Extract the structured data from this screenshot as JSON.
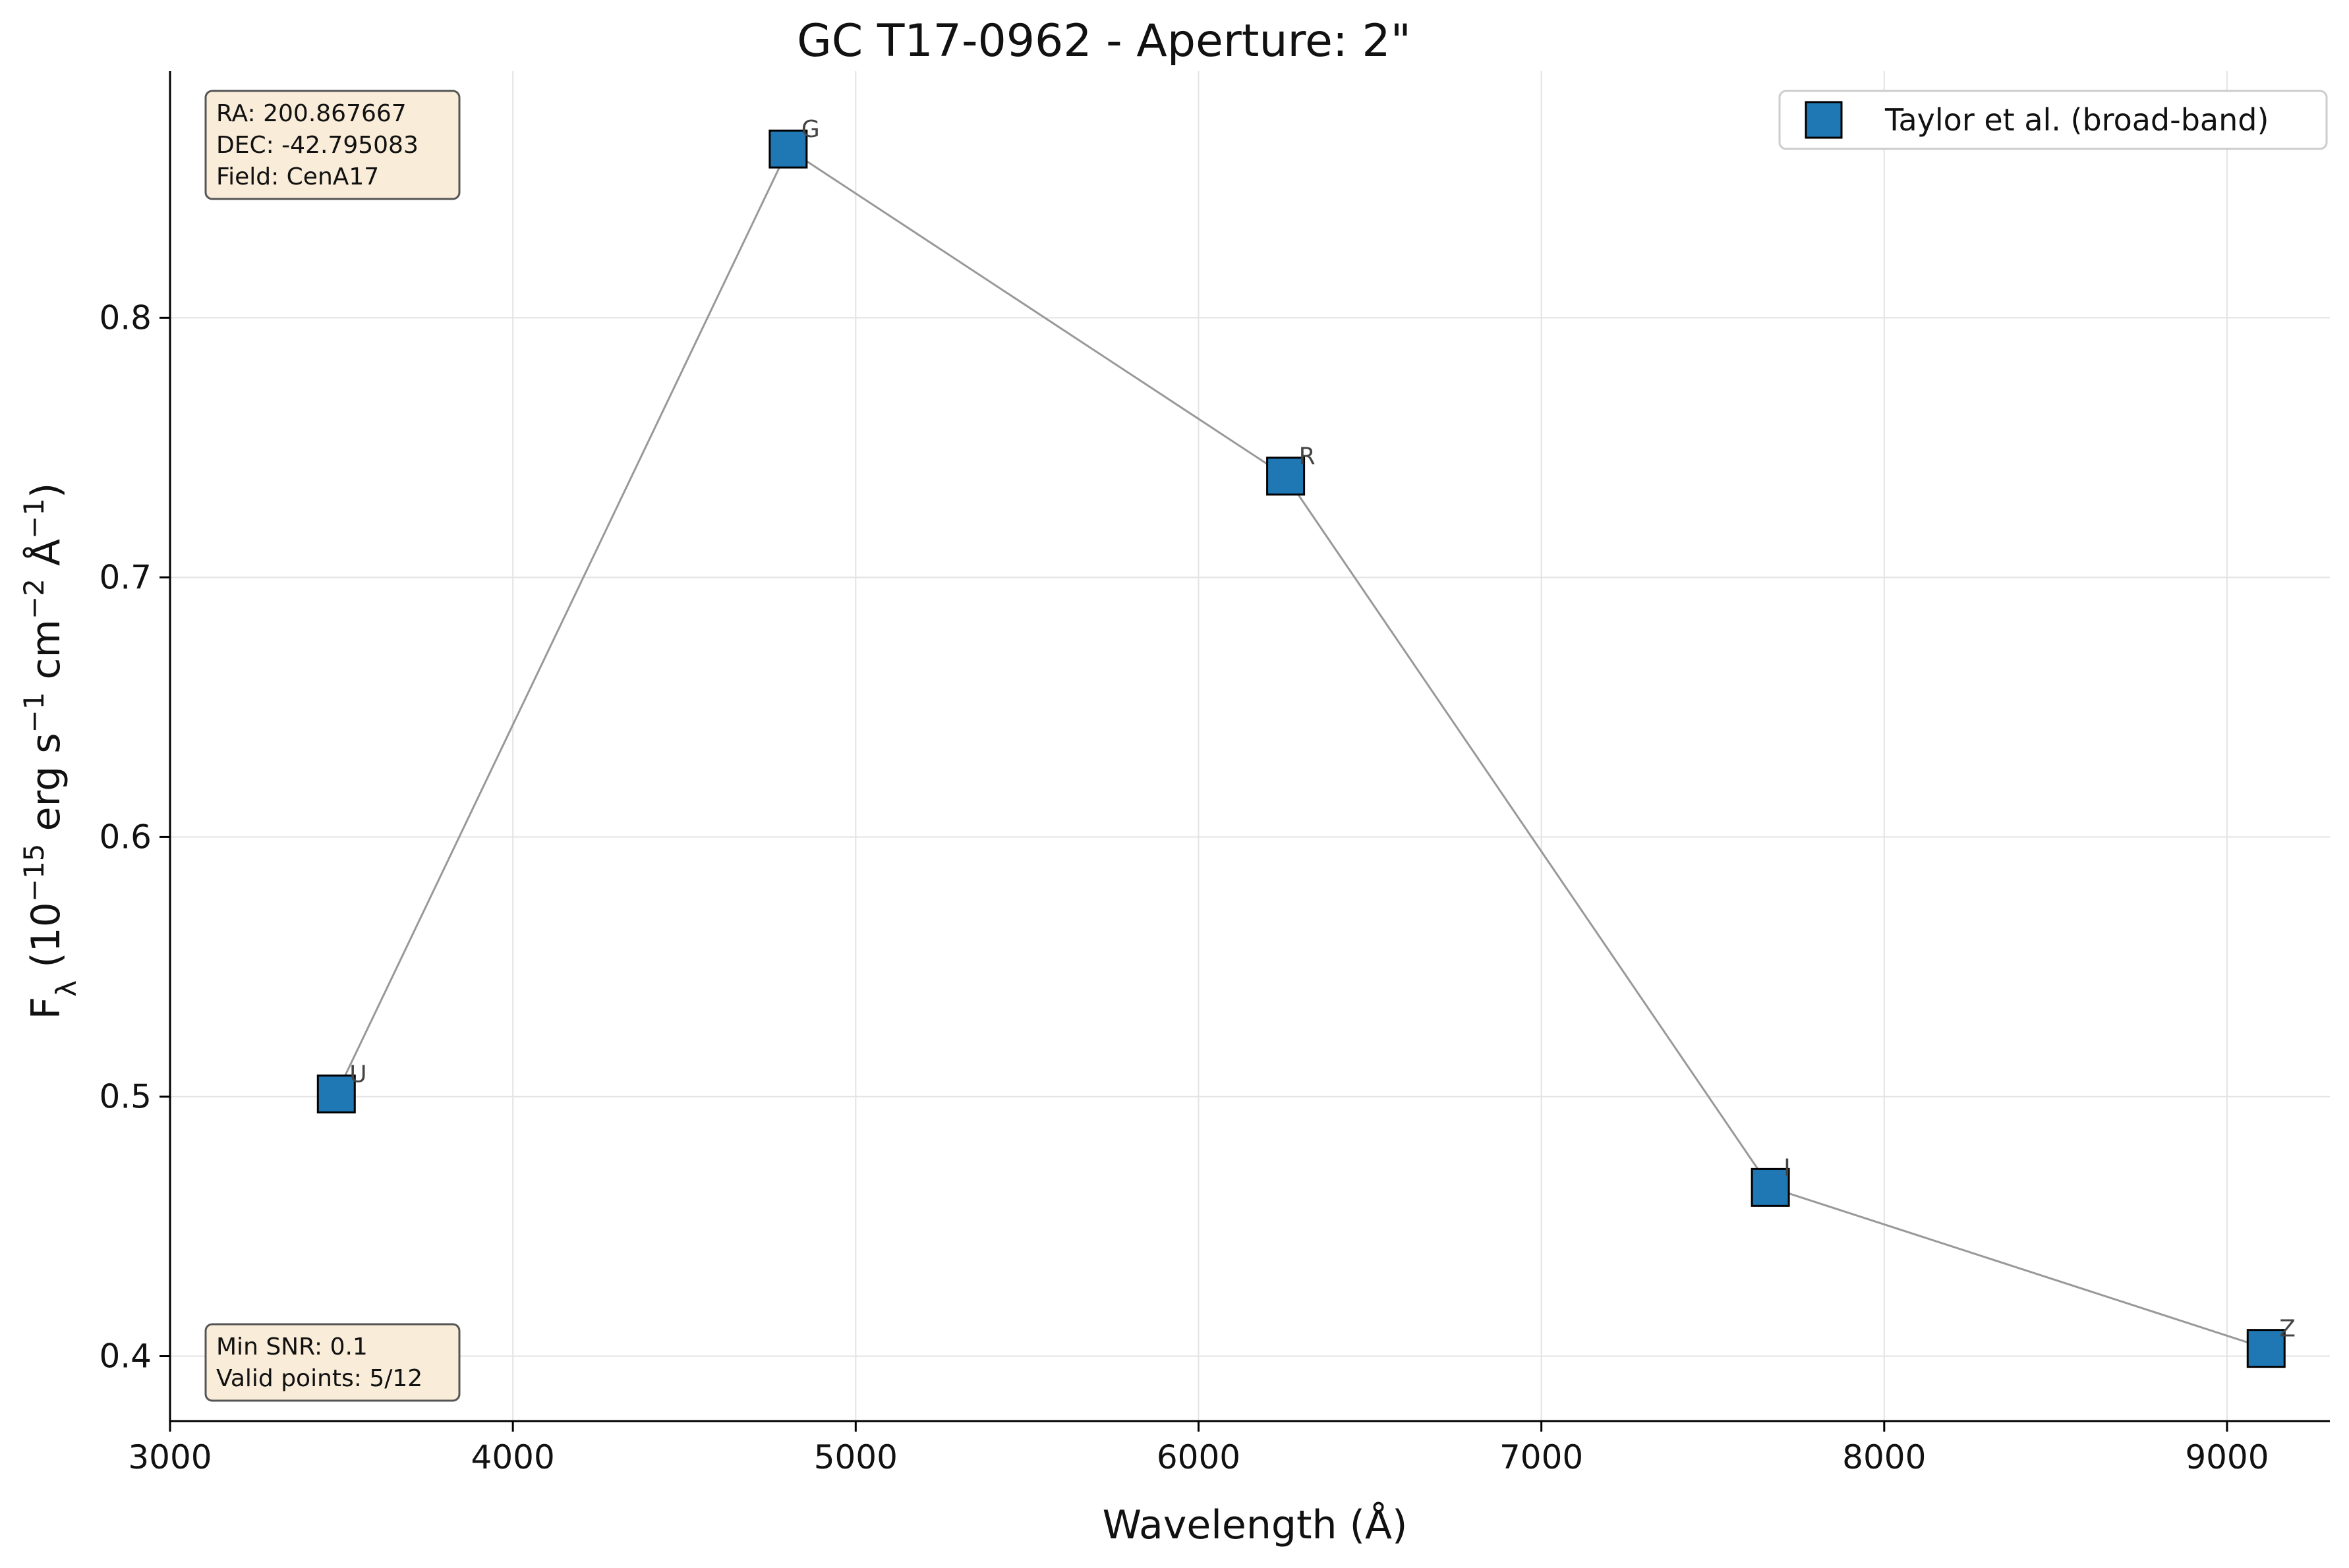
{
  "chart_data": {
    "type": "line",
    "title": "GC T17-0962 - Aperture: 2\"",
    "xlabel": "Wavelength (Å)",
    "ylabel": {
      "base": "F",
      "sub": "λ",
      "text1": " (10",
      "sup1": "−15",
      "text2": " erg s",
      "sup2": "−1",
      "text3": " cm",
      "sup3": "−2",
      "text4": " Å",
      "sup4": "−1",
      "text5": ")"
    },
    "xlim": [
      3000,
      9300
    ],
    "ylim": [
      0.375,
      0.895
    ],
    "xticks": [
      3000,
      4000,
      5000,
      6000,
      7000,
      8000,
      9000
    ],
    "yticks": [
      0.4,
      0.5,
      0.6,
      0.7,
      0.8
    ],
    "grid": true,
    "legend_position": "top-right",
    "series": [
      {
        "name": "Taylor et al. (broad-band)",
        "color": "#1f77b4",
        "line_color": "#999999",
        "marker": "square",
        "points": [
          {
            "label": "U",
            "x": 3485,
            "y": 0.501
          },
          {
            "label": "G",
            "x": 4803,
            "y": 0.865
          },
          {
            "label": "R",
            "x": 6254,
            "y": 0.739
          },
          {
            "label": "I",
            "x": 7668,
            "y": 0.465
          },
          {
            "label": "Z",
            "x": 9114,
            "y": 0.403
          }
        ]
      }
    ],
    "annotations": {
      "top_left": [
        "RA: 200.867667",
        "DEC: -42.795083",
        "Field: CenA17"
      ],
      "bottom_left": [
        "Min SNR: 0.1",
        "Valid points: 5/12"
      ]
    }
  }
}
